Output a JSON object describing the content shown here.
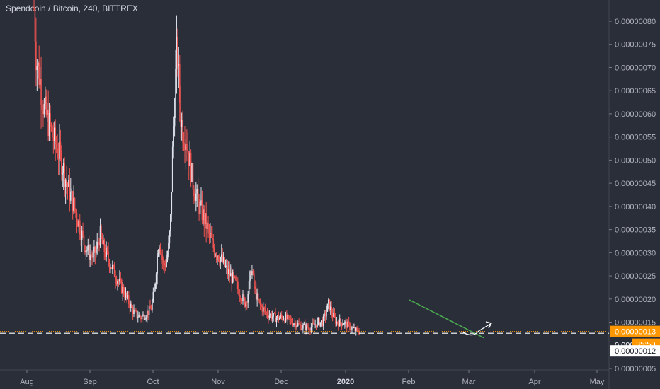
{
  "header": {
    "title": "Spendcoin / Bitcoin, 240, BITTREX"
  },
  "colors": {
    "background": "#2a2e39",
    "candle_up": "#e0e3eb",
    "candle_down": "#ef5350",
    "trendline": "#4caf50",
    "arrow": "#ffffff",
    "last_price_line": "#ff9800",
    "last_price_badge": "#ff9800",
    "bid_line": "#ffffff"
  },
  "chart_data": {
    "type": "candlestick",
    "title": "Spendcoin / Bitcoin, 240, BITTREX",
    "y_ticks": [
      "0.00000080",
      "0.00000075",
      "0.00000070",
      "0.00000065",
      "0.00000060",
      "0.00000055",
      "0.00000050",
      "0.00000045",
      "0.00000040",
      "0.00000035",
      "0.00000030",
      "0.00000025",
      "0.00000020",
      "0.00000015",
      "0.00000005"
    ],
    "x_ticks": [
      "Aug",
      "Sep",
      "Oct",
      "Nov",
      "Dec",
      "2020",
      "Feb",
      "Mar",
      "Apr",
      "May"
    ],
    "ylim": [
      5e-08,
      8e-07
    ],
    "price_path": [
      [
        0,
        8.3e-07
      ],
      [
        0.005,
        7.2e-07
      ],
      [
        0.012,
        6.8e-07
      ],
      [
        0.022,
        6.1e-07
      ],
      [
        0.032,
        5.8e-07
      ],
      [
        0.045,
        5.4e-07
      ],
      [
        0.06,
        5e-07
      ],
      [
        0.072,
        4.5e-07
      ],
      [
        0.085,
        4.1e-07
      ],
      [
        0.1,
        3.6e-07
      ],
      [
        0.11,
        3.2e-07
      ],
      [
        0.12,
        3e-07
      ],
      [
        0.13,
        2.9e-07
      ],
      [
        0.138,
        3.1e-07
      ],
      [
        0.145,
        3.4e-07
      ],
      [
        0.152,
        3.1e-07
      ],
      [
        0.162,
        2.9e-07
      ],
      [
        0.175,
        2.6e-07
      ],
      [
        0.19,
        2.3e-07
      ],
      [
        0.205,
        2e-07
      ],
      [
        0.22,
        1.7e-07
      ],
      [
        0.235,
        1.6e-07
      ],
      [
        0.248,
        1.7e-07
      ],
      [
        0.258,
        1.8e-07
      ],
      [
        0.265,
        2.2e-07
      ],
      [
        0.27,
        2.8e-07
      ],
      [
        0.275,
        3.3e-07
      ],
      [
        0.28,
        3e-07
      ],
      [
        0.285,
        2.7e-07
      ],
      [
        0.29,
        2.8e-07
      ],
      [
        0.295,
        3e-07
      ],
      [
        0.3,
        3.6e-07
      ],
      [
        0.305,
        5.2e-07
      ],
      [
        0.31,
        6.5e-07
      ],
      [
        0.315,
        7.5e-07
      ],
      [
        0.318,
        6.8e-07
      ],
      [
        0.322,
        6e-07
      ],
      [
        0.328,
        5.6e-07
      ],
      [
        0.335,
        5.5e-07
      ],
      [
        0.342,
        5e-07
      ],
      [
        0.35,
        4.5e-07
      ],
      [
        0.36,
        4.1e-07
      ],
      [
        0.372,
        3.8e-07
      ],
      [
        0.385,
        3.4e-07
      ],
      [
        0.395,
        3.1e-07
      ],
      [
        0.41,
        2.9e-07
      ],
      [
        0.425,
        2.6e-07
      ],
      [
        0.44,
        2.4e-07
      ],
      [
        0.455,
        2.1e-07
      ],
      [
        0.465,
        1.9e-07
      ],
      [
        0.472,
        2.2e-07
      ],
      [
        0.478,
        2.7e-07
      ],
      [
        0.485,
        2.2e-07
      ],
      [
        0.495,
        1.9e-07
      ],
      [
        0.51,
        1.7e-07
      ],
      [
        0.53,
        1.6e-07
      ],
      [
        0.55,
        1.6e-07
      ],
      [
        0.57,
        1.5e-07
      ],
      [
        0.59,
        1.4e-07
      ],
      [
        0.61,
        1.4e-07
      ],
      [
        0.625,
        1.5e-07
      ],
      [
        0.635,
        1.5e-07
      ],
      [
        0.642,
        1.7e-07
      ],
      [
        0.648,
        1.9e-07
      ],
      [
        0.655,
        1.7e-07
      ],
      [
        0.665,
        1.5e-07
      ],
      [
        0.68,
        1.5e-07
      ],
      [
        0.695,
        1.4e-07
      ],
      [
        0.71,
        1.3e-07
      ],
      [
        0.715,
        1.3e-07
      ]
    ],
    "last_price": "0.00000013",
    "countdown": "35:50",
    "bid_price": "0.00000012",
    "bid_price_partial": "0.000",
    "annotations": [
      "descending trendline (green)",
      "upward arrow (white)"
    ]
  }
}
